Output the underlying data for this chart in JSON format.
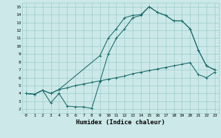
{
  "xlabel": "Humidex (Indice chaleur)",
  "bg_color": "#cce8e8",
  "grid_color": "#99cccc",
  "line_color": "#1a6b6b",
  "xlim": [
    -0.5,
    23.5
  ],
  "ylim": [
    1.5,
    15.5
  ],
  "xticks": [
    0,
    1,
    2,
    3,
    4,
    5,
    6,
    7,
    8,
    9,
    10,
    11,
    12,
    13,
    14,
    15,
    16,
    17,
    18,
    19,
    20,
    21,
    22,
    23
  ],
  "yticks": [
    2,
    3,
    4,
    5,
    6,
    7,
    8,
    9,
    10,
    11,
    12,
    13,
    14,
    15
  ],
  "line1_x": [
    0,
    1,
    2,
    3,
    4,
    5,
    6,
    7,
    8,
    9,
    10,
    11,
    12,
    13,
    14,
    15,
    16,
    17,
    18,
    19,
    20,
    21,
    22,
    23
  ],
  "line1_y": [
    4.0,
    3.9,
    4.4,
    4.0,
    4.5,
    4.7,
    5.0,
    5.2,
    5.4,
    5.6,
    5.8,
    6.0,
    6.2,
    6.5,
    6.7,
    6.9,
    7.1,
    7.3,
    7.5,
    7.7,
    7.9,
    6.4,
    6.0,
    6.7
  ],
  "line2_x": [
    0,
    1,
    2,
    3,
    4,
    9,
    10,
    11,
    12,
    13,
    14,
    15,
    16,
    17,
    18,
    19,
    20,
    21,
    22,
    23
  ],
  "line2_y": [
    4.0,
    3.9,
    4.4,
    4.0,
    4.5,
    8.8,
    11.0,
    12.2,
    13.6,
    13.9,
    14.0,
    15.0,
    14.3,
    13.9,
    13.2,
    13.2,
    12.2,
    9.5,
    7.5,
    7.0
  ],
  "line3_x": [
    0,
    1,
    2,
    3,
    4,
    5,
    6,
    7,
    8,
    9,
    10,
    11,
    12,
    13,
    14,
    15,
    16,
    17,
    18,
    19,
    20,
    21,
    22,
    23
  ],
  "line3_y": [
    4.0,
    3.9,
    4.4,
    2.8,
    4.0,
    2.4,
    2.3,
    2.3,
    2.1,
    5.5,
    9.0,
    11.0,
    12.2,
    13.6,
    13.9,
    15.0,
    14.3,
    13.9,
    13.2,
    13.2,
    12.2,
    9.5,
    7.5,
    7.0
  ]
}
